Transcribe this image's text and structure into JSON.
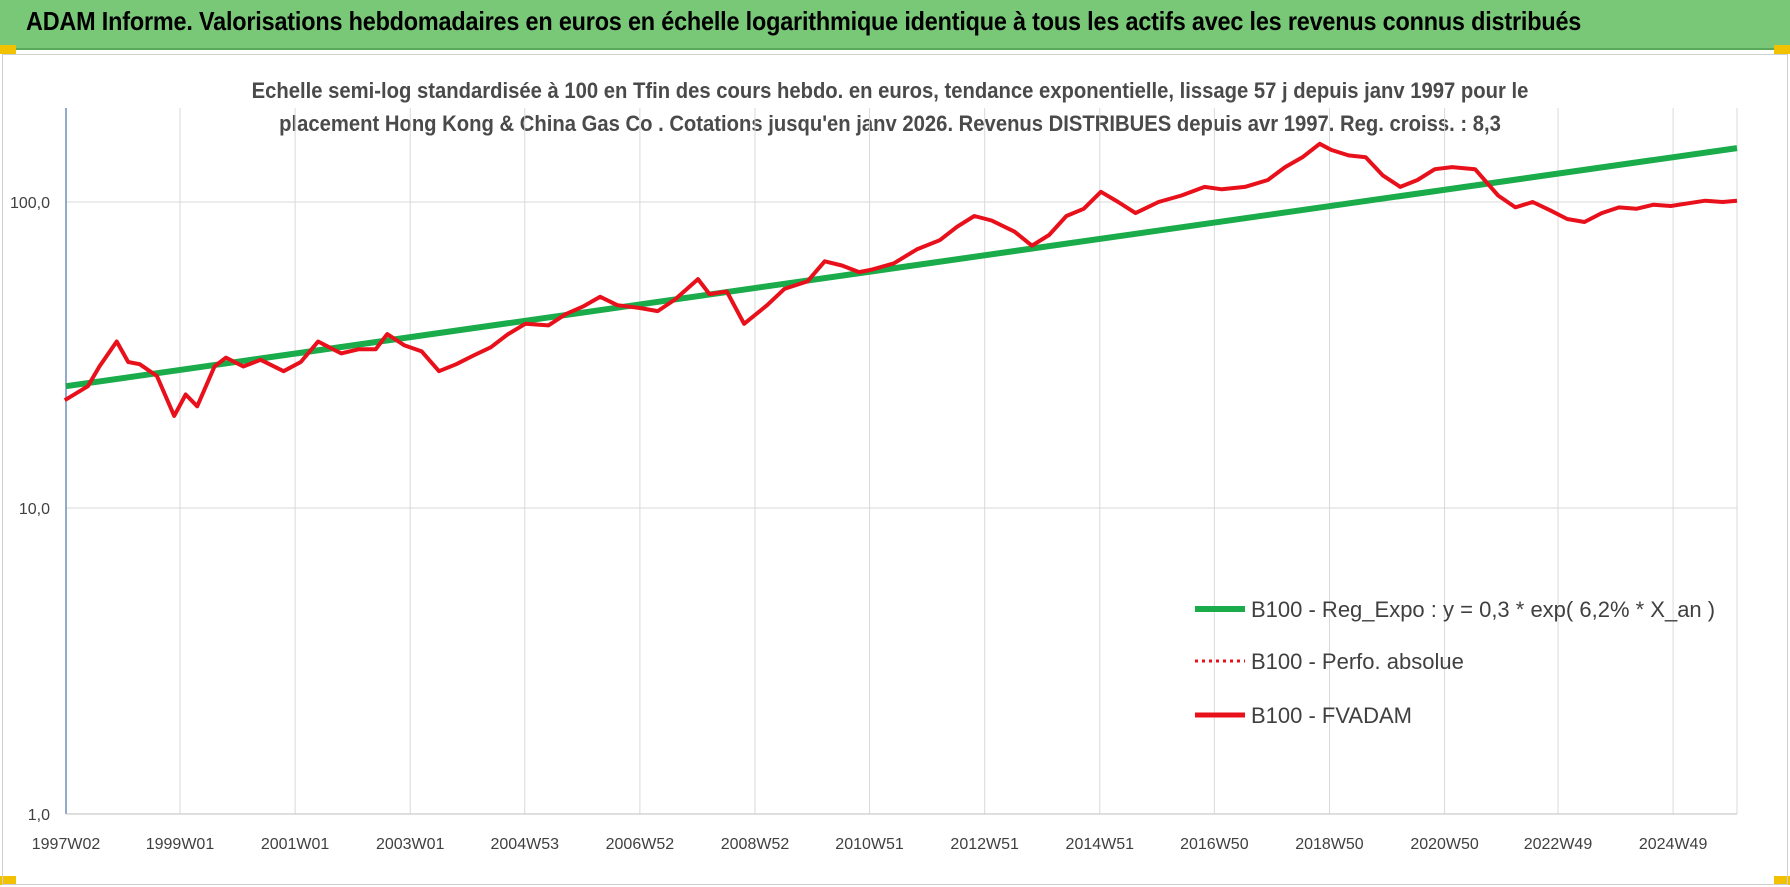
{
  "header": {
    "title": "ADAM Informe. Valorisations hebdomadaires en euros en échelle logarithmique identique à tous les actifs avec les revenus connus distribués"
  },
  "chart_data": {
    "type": "line",
    "title_lines": [
      "Echelle semi-log standardisée à 100 en Tfin des cours hebdo. en euros, tendance exponentielle, lissage 57 j depuis janv 1997 pour le",
      "placement Hong Kong & China Gas Co . Cotations jusqu'en janv 2026. Revenus DISTRIBUES depuis avr 1997. Reg. croiss. : 8,3"
    ],
    "y_scale": "log",
    "ylim": [
      1,
      180
    ],
    "y_ticks": [
      1,
      10,
      100
    ],
    "y_tick_labels": [
      "1,0",
      "10,0",
      "100,0"
    ],
    "x_range": [
      1997.02,
      2026.05
    ],
    "x_tick_values": [
      1997.02,
      1999.0,
      2001.0,
      2003.0,
      2004.99,
      2006.99,
      2008.99,
      2010.98,
      2012.98,
      2014.98,
      2016.97,
      2018.97,
      2020.97,
      2022.94,
      2024.94
    ],
    "x_tick_labels": [
      "1997W02",
      "1999W01",
      "2001W01",
      "2003W01",
      "2004W53",
      "2006W52",
      "2008W52",
      "2010W51",
      "2012W51",
      "2014W51",
      "2016W50",
      "2018W50",
      "2020W50",
      "2022W49",
      "2024W49"
    ],
    "grid": true,
    "legend_position": "bottom-right",
    "colors": {
      "trend": "#1aab4a",
      "perf": "#e8101a",
      "fvadam": "#e8101a",
      "grid": "#d9d9d9",
      "axis": "#6f8fb8"
    },
    "series": [
      {
        "name": "B100 - Reg_Expo : y = 0,3 * exp( 6,2% *  X_an )",
        "style": "solid-thick",
        "x": [
          1997.02,
          2026.05
        ],
        "y": [
          25.0,
          150.0
        ]
      },
      {
        "name": "B100 - Perfo. absolue",
        "style": "dotted",
        "x": [],
        "y": []
      },
      {
        "name": "B100 - FVADAM",
        "style": "solid",
        "x": [
          1997.0,
          1997.4,
          1997.6,
          1997.9,
          1998.1,
          1998.3,
          1998.6,
          1998.9,
          1999.1,
          1999.3,
          1999.6,
          1999.8,
          2000.1,
          2000.4,
          2000.8,
          2001.1,
          2001.4,
          2001.8,
          2002.1,
          2002.4,
          2002.6,
          2002.9,
          2003.2,
          2003.5,
          2003.8,
          2004.1,
          2004.4,
          2004.7,
          2005.0,
          2005.4,
          2005.7,
          2006.0,
          2006.3,
          2006.6,
          2007.0,
          2007.3,
          2007.6,
          2008.0,
          2008.2,
          2008.5,
          2008.8,
          2009.2,
          2009.5,
          2009.9,
          2010.2,
          2010.5,
          2010.8,
          2011.0,
          2011.4,
          2011.8,
          2012.2,
          2012.5,
          2012.8,
          2013.1,
          2013.5,
          2013.8,
          2014.1,
          2014.4,
          2014.7,
          2015.0,
          2015.3,
          2015.6,
          2016.0,
          2016.4,
          2016.8,
          2017.1,
          2017.5,
          2017.9,
          2018.2,
          2018.5,
          2018.8,
          2019.0,
          2019.3,
          2019.6,
          2019.9,
          2020.2,
          2020.5,
          2020.8,
          2021.1,
          2021.5,
          2021.9,
          2022.2,
          2022.5,
          2022.8,
          2023.1,
          2023.4,
          2023.7,
          2024.0,
          2024.3,
          2024.6,
          2024.9,
          2025.2,
          2025.5,
          2025.8,
          2026.05
        ],
        "y": [
          22.5,
          25.0,
          29.0,
          35.0,
          30.0,
          29.5,
          27.0,
          20.0,
          23.5,
          21.5,
          29.0,
          31.0,
          29.0,
          30.5,
          28.0,
          30.0,
          35.0,
          32.0,
          33.0,
          33.0,
          37.0,
          34.0,
          32.5,
          28.0,
          29.5,
          31.5,
          33.5,
          37.0,
          40.0,
          39.5,
          43.0,
          45.5,
          49.0,
          46.0,
          45.0,
          44.0,
          48.0,
          56.0,
          50.0,
          51.0,
          40.0,
          46.0,
          52.0,
          55.0,
          64.0,
          62.0,
          59.0,
          60.0,
          63.0,
          70.0,
          75.0,
          83.0,
          90.0,
          87.0,
          80.0,
          72.0,
          78.0,
          90.0,
          95.0,
          108.0,
          100.0,
          92.0,
          100.0,
          105.0,
          112.0,
          110.0,
          112.0,
          118.0,
          130.0,
          140.0,
          155.0,
          148.0,
          142.0,
          140.0,
          122.0,
          112.0,
          118.0,
          128.0,
          130.0,
          128.0,
          105.0,
          96.0,
          100.0,
          94.0,
          88.0,
          86.0,
          92.0,
          96.0,
          95.0,
          98.0,
          97.0,
          99.0,
          101.0,
          100.0,
          101.0
        ]
      }
    ]
  }
}
